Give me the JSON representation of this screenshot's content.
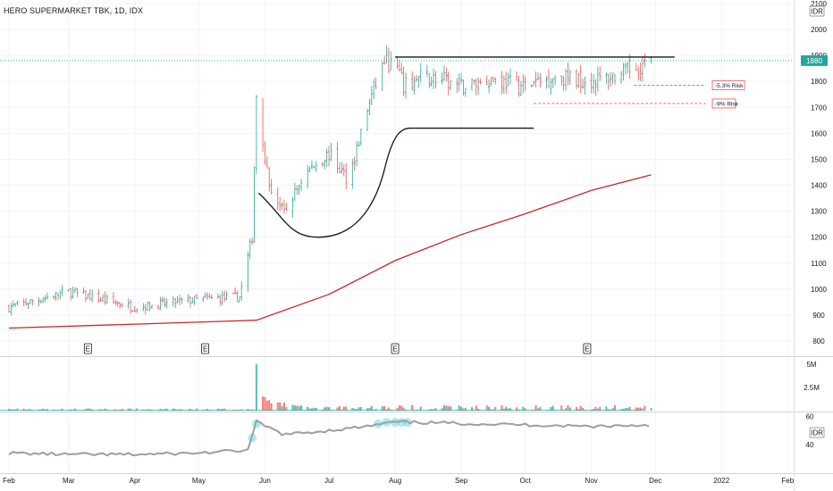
{
  "header": {
    "symbol_line": "HERO SUPERMARKET TBK, 1D, IDX"
  },
  "price_scale": {
    "currency": "IDR",
    "ticks": [
      "2100",
      "2000",
      "1900",
      "1800",
      "1700",
      "1600",
      "1500",
      "1400",
      "1300",
      "1200",
      "1100",
      "1000",
      "900",
      "800"
    ],
    "last_price_label": "1880",
    "last_price_color": "#26a69a"
  },
  "volume_scale": {
    "ticks": [
      "5M",
      "2.5M"
    ]
  },
  "rsi_scale": {
    "ticks": [
      "60",
      "40"
    ],
    "currency": "IDR"
  },
  "time_axis": {
    "labels": [
      "Feb",
      "Mar",
      "Apr",
      "May",
      "Jun",
      "Jul",
      "Aug",
      "Sep",
      "Oct",
      "Nov",
      "Dec",
      "2022",
      "Feb"
    ]
  },
  "earnings_markers": [
    "E",
    "E",
    "E",
    "E"
  ],
  "annotations": {
    "risk_1": "-5.3% Risk",
    "risk_2": "-9% Risk"
  },
  "colors": {
    "up": "#26a69a",
    "down": "#ef5350",
    "moving_average": "#c62828",
    "rsi_line": "#9e9e9e",
    "rsi_highlight": "#4dd0e1",
    "grid": "#f0f3fa"
  },
  "chart_data": [
    {
      "type": "candlestick",
      "title": "HERO SUPERMARKET TBK, 1D, IDX",
      "ylim": [
        780,
        2110
      ],
      "x_range": [
        "2021-02-01",
        "2022-02-28"
      ],
      "last_price": 1880,
      "moving_average": {
        "x": [
          "2021-02-01",
          "2021-04-01",
          "2021-05-28",
          "2021-07-01",
          "2021-08-01",
          "2021-09-01",
          "2021-10-01",
          "2021-11-01",
          "2021-11-29"
        ],
        "y": [
          850,
          865,
          880,
          980,
          1110,
          1210,
          1290,
          1380,
          1440
        ]
      },
      "resistance_line": {
        "y": 1880,
        "x": [
          "2021-08-01",
          "2021-12-10"
        ]
      },
      "risk_levels": [
        {
          "label": "-5.3% Risk",
          "y": 1785
        },
        {
          "label": "-9% Risk",
          "y": 1715
        }
      ],
      "cup_pattern": {
        "rim_left": 1370,
        "bottom": 1200,
        "rim_right": 1620
      },
      "price_path": {
        "x": [
          "2021-02-01",
          "2021-03-01",
          "2021-04-01",
          "2021-05-01",
          "2021-05-20",
          "2021-05-26",
          "2021-05-28",
          "2021-06-03",
          "2021-06-10",
          "2021-06-20",
          "2021-07-01",
          "2021-07-10",
          "2021-07-20",
          "2021-07-27",
          "2021-08-02",
          "2021-08-05",
          "2021-08-15",
          "2021-09-01",
          "2021-09-15",
          "2021-10-01",
          "2021-10-15",
          "2021-11-01",
          "2021-11-15",
          "2021-11-29"
        ],
        "y": [
          930,
          990,
          930,
          960,
          970,
          1200,
          1750,
          1400,
          1290,
          1450,
          1520,
          1420,
          1720,
          1880,
          1850,
          1780,
          1820,
          1780,
          1810,
          1780,
          1820,
          1800,
          1830,
          1880
        ]
      }
    },
    {
      "type": "bar",
      "title": "Volume",
      "ylim": [
        0,
        5000000
      ],
      "peak_date": "2021-05-28",
      "peak_value": 5000000
    },
    {
      "type": "line",
      "title": "RSI",
      "ylim": [
        30,
        60
      ],
      "x": [
        "2021-02-01",
        "2021-03-01",
        "2021-04-01",
        "2021-05-01",
        "2021-05-24",
        "2021-05-28",
        "2021-06-10",
        "2021-07-01",
        "2021-07-20",
        "2021-07-27",
        "2021-08-02",
        "2021-09-01",
        "2021-10-01",
        "2021-11-01",
        "2021-11-29"
      ],
      "y": [
        34,
        33,
        33,
        34,
        36,
        56,
        47,
        50,
        53,
        55,
        56,
        55,
        54,
        53,
        54
      ]
    }
  ]
}
